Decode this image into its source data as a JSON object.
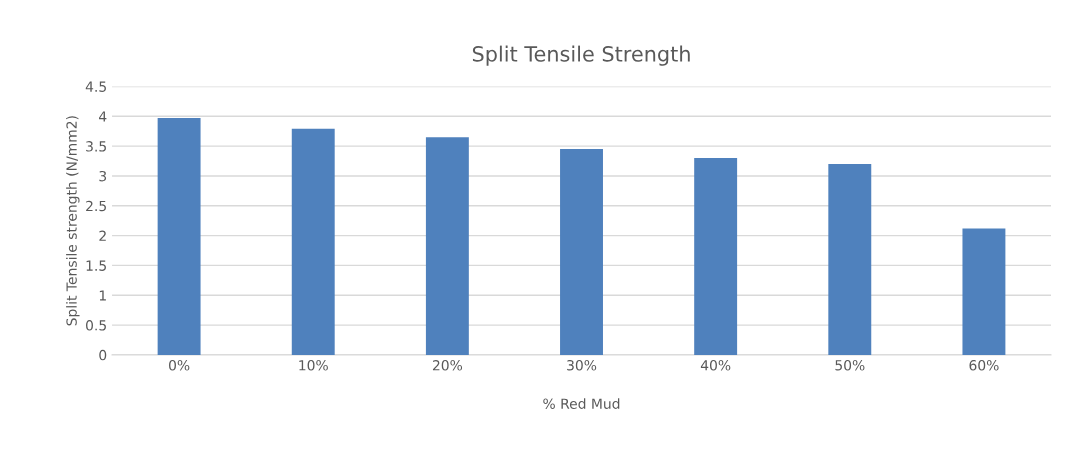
{
  "chart_data": {
    "type": "bar",
    "title": "Split Tensile Strength",
    "xlabel": "% Red Mud",
    "ylabel": "Split Tensile strength (N/mm2)",
    "categories": [
      "0%",
      "10%",
      "20%",
      "30%",
      "40%",
      "50%",
      "60%"
    ],
    "values": [
      3.97,
      3.79,
      3.65,
      3.45,
      3.3,
      3.2,
      2.12
    ],
    "color": "#4f81bd",
    "ylim": [
      0,
      4.5
    ],
    "yticks": [
      0,
      0.5,
      1,
      1.5,
      2,
      2.5,
      3,
      3.5,
      4,
      4.5
    ],
    "grid": "y"
  }
}
